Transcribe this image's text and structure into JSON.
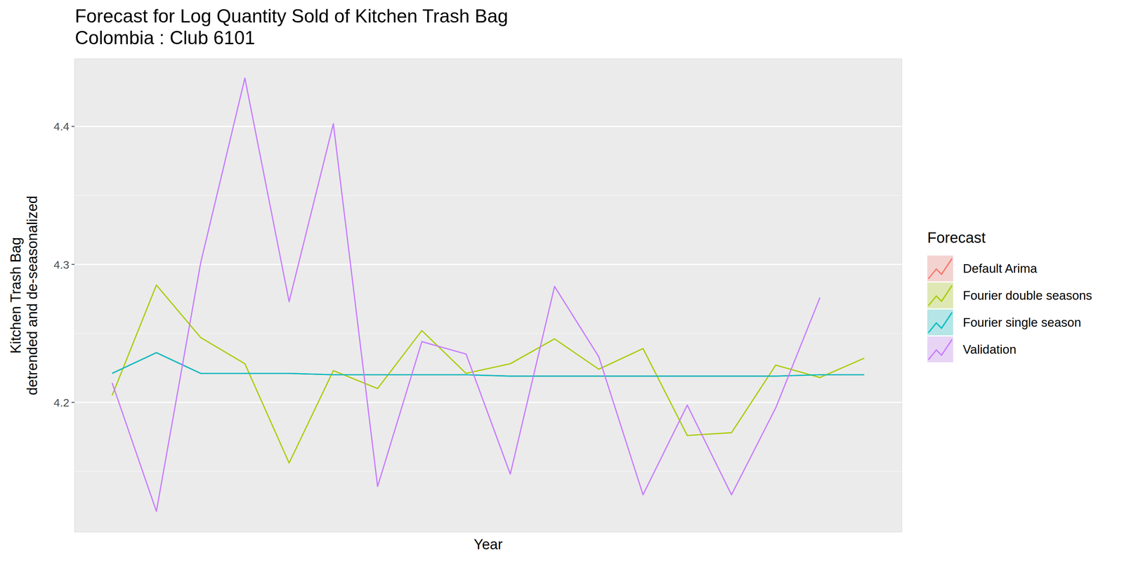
{
  "chart_data": {
    "type": "line",
    "title": "Forecast for Log Quantity Sold of Kitchen Trash Bag\n Colombia : Club 6101",
    "x_label": "Year",
    "y_label": "Kitchen Trash Bag\ndetrended and de-seasonalized",
    "legend_title": "Forecast",
    "x": [
      1,
      2,
      3,
      4,
      5,
      6,
      7,
      8,
      9,
      10,
      11,
      12,
      13,
      14,
      15,
      16,
      17,
      18
    ],
    "xlim": [
      0.15,
      18.85
    ],
    "ylim": [
      4.106,
      4.449
    ],
    "yticks": [
      4.2,
      4.3,
      4.4
    ],
    "grid": true,
    "legend": "right",
    "tick_labels": "y",
    "series": [
      {
        "name": "Default Arima",
        "color": "#F8766D",
        "values": [
          4.221,
          4.236,
          4.221,
          4.221,
          4.221,
          4.22,
          4.22,
          4.22,
          4.22,
          4.219,
          4.219,
          4.219,
          4.219,
          4.219,
          4.219,
          4.219,
          4.22,
          4.22
        ]
      },
      {
        "name": "Fourier double seasons",
        "color": "#A8CC00",
        "values": [
          4.205,
          4.285,
          4.247,
          4.228,
          4.156,
          4.223,
          4.21,
          4.252,
          4.221,
          4.228,
          4.246,
          4.224,
          4.239,
          4.176,
          4.178,
          4.227,
          4.218,
          4.232
        ]
      },
      {
        "name": "Fourier single season",
        "color": "#00BFC4",
        "values": [
          4.221,
          4.236,
          4.221,
          4.221,
          4.221,
          4.22,
          4.22,
          4.22,
          4.22,
          4.219,
          4.219,
          4.219,
          4.219,
          4.219,
          4.219,
          4.219,
          4.22,
          4.22
        ]
      },
      {
        "name": "Validation",
        "color": "#C77CFF",
        "values": [
          4.214,
          4.121,
          4.301,
          4.435,
          4.273,
          4.402,
          4.139,
          4.244,
          4.235,
          4.148,
          4.284,
          4.233,
          4.133,
          4.198,
          4.133,
          4.196,
          4.276,
          null
        ]
      }
    ]
  }
}
